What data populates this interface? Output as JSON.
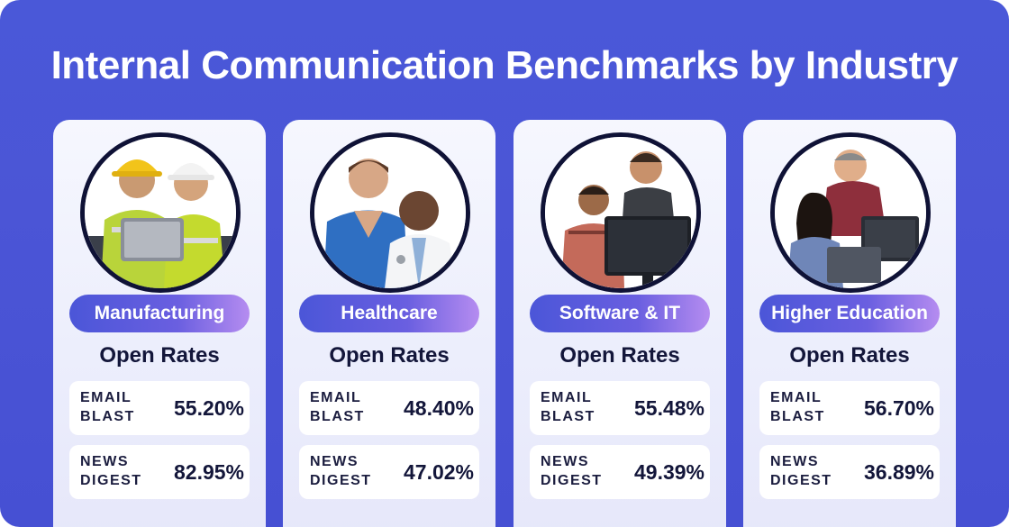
{
  "title": "Internal Communication Benchmarks by Industry",
  "colors": {
    "background": "#4a58d8",
    "pill_start": "#4b56d8",
    "pill_end": "#b58cf0",
    "text_dark": "#13163a"
  },
  "cards": [
    {
      "industry": "Manufacturing",
      "metric_title": "Open Rates",
      "rows": [
        {
          "label_line1": "EMAIL",
          "label_line2": "BLAST",
          "value": "55.20%"
        },
        {
          "label_line1": "NEWS",
          "label_line2": "DIGEST",
          "value": "82.95%"
        }
      ]
    },
    {
      "industry": "Healthcare",
      "metric_title": "Open Rates",
      "rows": [
        {
          "label_line1": "EMAIL",
          "label_line2": "BLAST",
          "value": "48.40%"
        },
        {
          "label_line1": "NEWS",
          "label_line2": "DIGEST",
          "value": "47.02%"
        }
      ]
    },
    {
      "industry": "Software & IT",
      "metric_title": "Open Rates",
      "rows": [
        {
          "label_line1": "EMAIL",
          "label_line2": "BLAST",
          "value": "55.48%"
        },
        {
          "label_line1": "NEWS",
          "label_line2": "DIGEST",
          "value": "49.39%"
        }
      ]
    },
    {
      "industry": "Higher Education",
      "metric_title": "Open Rates",
      "rows": [
        {
          "label_line1": "EMAIL",
          "label_line2": "BLAST",
          "value": "56.70%"
        },
        {
          "label_line1": "NEWS",
          "label_line2": "DIGEST",
          "value": "36.89%"
        }
      ]
    }
  ]
}
